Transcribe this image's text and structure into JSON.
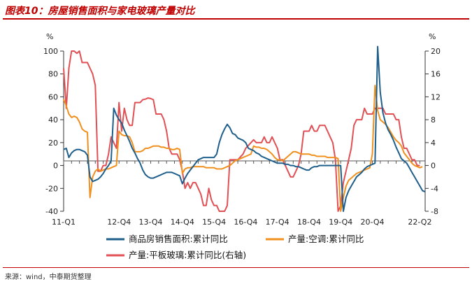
{
  "header": {
    "title": "图表10：房屋销售面积与家电玻璃产量对比"
  },
  "footer": {
    "source": "来源：wind，中泰期货整理"
  },
  "chart_data": {
    "type": "line",
    "title": "图表10：房屋销售面积与家电玻璃产量对比",
    "left_axis": {
      "unit_label": "%",
      "range": [
        -40,
        100
      ],
      "ticks": [
        "-40",
        "-20",
        "0",
        "20",
        "40",
        "60",
        "80",
        "100"
      ]
    },
    "right_axis": {
      "unit_label": "%",
      "range": [
        -8,
        20
      ],
      "ticks": [
        "-8",
        "-4",
        "0",
        "4",
        "8",
        "12",
        "16",
        "20"
      ]
    },
    "x_tick_labels": [
      "11-Q1",
      "12-Q4",
      "13-Q4",
      "14-Q4",
      "15-Q4",
      "16-Q4",
      "17-Q4",
      "18-Q4",
      "19-Q4",
      "20-Q4",
      "22-Q2"
    ],
    "x_ticks_month_index": [
      0,
      21,
      33,
      45,
      57,
      69,
      81,
      93,
      105,
      117,
      135
    ],
    "series": [
      {
        "name": "商品房销售面积:累计同比",
        "axis": "left",
        "color": "#1f5f8b",
        "values": [
          14,
          15,
          7,
          11,
          13,
          14,
          14,
          13,
          12,
          9,
          -10,
          -14,
          -13,
          -12,
          -10,
          -7,
          -3,
          0,
          4,
          50,
          44,
          40,
          37,
          31,
          26,
          21,
          15,
          11,
          6,
          2,
          -4,
          -8,
          -10,
          -11,
          -11,
          -10,
          -9,
          -8,
          -7,
          -6,
          -6,
          -6,
          -7,
          -8,
          -9,
          -16,
          -11,
          -7,
          -4,
          -1,
          2,
          5,
          6,
          7,
          7,
          7,
          7,
          7,
          10,
          20,
          27,
          32,
          36,
          33,
          28,
          27,
          24,
          23,
          22,
          20,
          15,
          14,
          13,
          11,
          10,
          8,
          7,
          6,
          5,
          4,
          3,
          2,
          2,
          2,
          1,
          1,
          0,
          0,
          -1,
          -1,
          -2,
          -3,
          -4,
          -4,
          -2,
          -1,
          -1,
          0,
          0,
          0,
          0,
          0,
          0,
          0,
          0,
          0,
          -40,
          -28,
          -22,
          -18,
          -14,
          -10,
          -8,
          -6,
          -3,
          -1,
          0,
          1,
          2,
          104,
          64,
          46,
          37,
          31,
          27,
          22,
          16,
          11,
          6,
          4,
          2,
          -2,
          -6,
          -10,
          -14,
          -18,
          -22,
          -23
        ]
      },
      {
        "name": "产量:空调:累计同比",
        "axis": "left",
        "color": "#f0901e",
        "values": [
          58,
          52,
          45,
          42,
          43,
          42,
          38,
          32,
          30,
          29,
          -28,
          -10,
          -5,
          -3,
          -5,
          -4,
          -3,
          -3,
          -2,
          -1,
          0,
          30,
          27,
          26,
          26,
          25,
          20,
          12,
          12,
          12,
          13,
          15,
          15,
          16,
          17,
          17,
          17,
          16,
          16,
          15,
          15,
          14,
          14,
          15,
          14,
          -7,
          -3,
          -2,
          -2,
          -1,
          -1,
          -1,
          -1,
          -1,
          -2,
          -2,
          -2,
          -2,
          -3,
          -3,
          -3,
          -2,
          -1,
          0,
          2,
          4,
          5,
          6,
          7,
          8,
          9,
          10,
          17,
          16,
          16,
          15,
          15,
          14,
          12,
          10,
          7,
          5,
          5,
          4,
          6,
          8,
          10,
          12,
          12,
          11,
          10,
          10,
          10,
          10,
          9,
          9,
          8,
          8,
          8,
          8,
          7,
          7,
          7,
          7,
          6,
          -40,
          -28,
          -18,
          -13,
          -11,
          -9,
          -7,
          -6,
          -5,
          -4,
          -3,
          -2,
          10,
          70,
          48,
          40,
          38,
          36,
          33,
          29,
          25,
          22,
          20,
          17,
          11,
          8,
          5,
          2,
          0,
          -1,
          -2,
          -1
        ]
      },
      {
        "name": "产量:平板玻璃:累计同比(右轴)",
        "axis": "right",
        "color": "#e05055",
        "values": [
          17,
          10,
          17,
          20,
          20,
          19.6,
          20,
          18,
          18,
          18,
          17,
          16,
          14,
          -1,
          -1,
          0,
          0,
          2,
          5,
          4,
          3,
          11,
          6,
          10,
          8,
          7,
          7,
          11,
          11,
          11,
          11.5,
          11.6,
          11.8,
          11.7,
          11.5,
          9,
          9,
          9,
          8,
          6,
          3,
          2,
          2,
          2,
          1,
          -1,
          -4,
          -3,
          -4,
          -3,
          -3,
          -4,
          -5,
          -7,
          -7,
          -4,
          -6,
          -7,
          -7,
          -8,
          -8,
          -8,
          -7,
          1,
          1,
          1,
          1,
          1.5,
          2,
          3,
          3.5,
          4,
          4.5,
          4,
          4,
          4,
          5,
          4,
          4,
          5,
          4,
          3,
          1,
          1,
          0,
          -1,
          -2,
          -2,
          -1,
          0,
          2,
          6,
          6,
          6,
          7,
          6,
          6,
          7,
          7,
          7,
          6,
          5,
          4,
          1,
          -8,
          -7,
          -3,
          -1,
          1,
          3,
          7,
          8,
          8,
          8,
          10,
          9,
          9,
          9,
          10,
          10,
          10,
          10,
          9,
          9,
          9,
          9,
          8,
          8,
          5,
          3,
          3,
          2,
          1,
          1,
          0,
          0
        ]
      }
    ]
  }
}
